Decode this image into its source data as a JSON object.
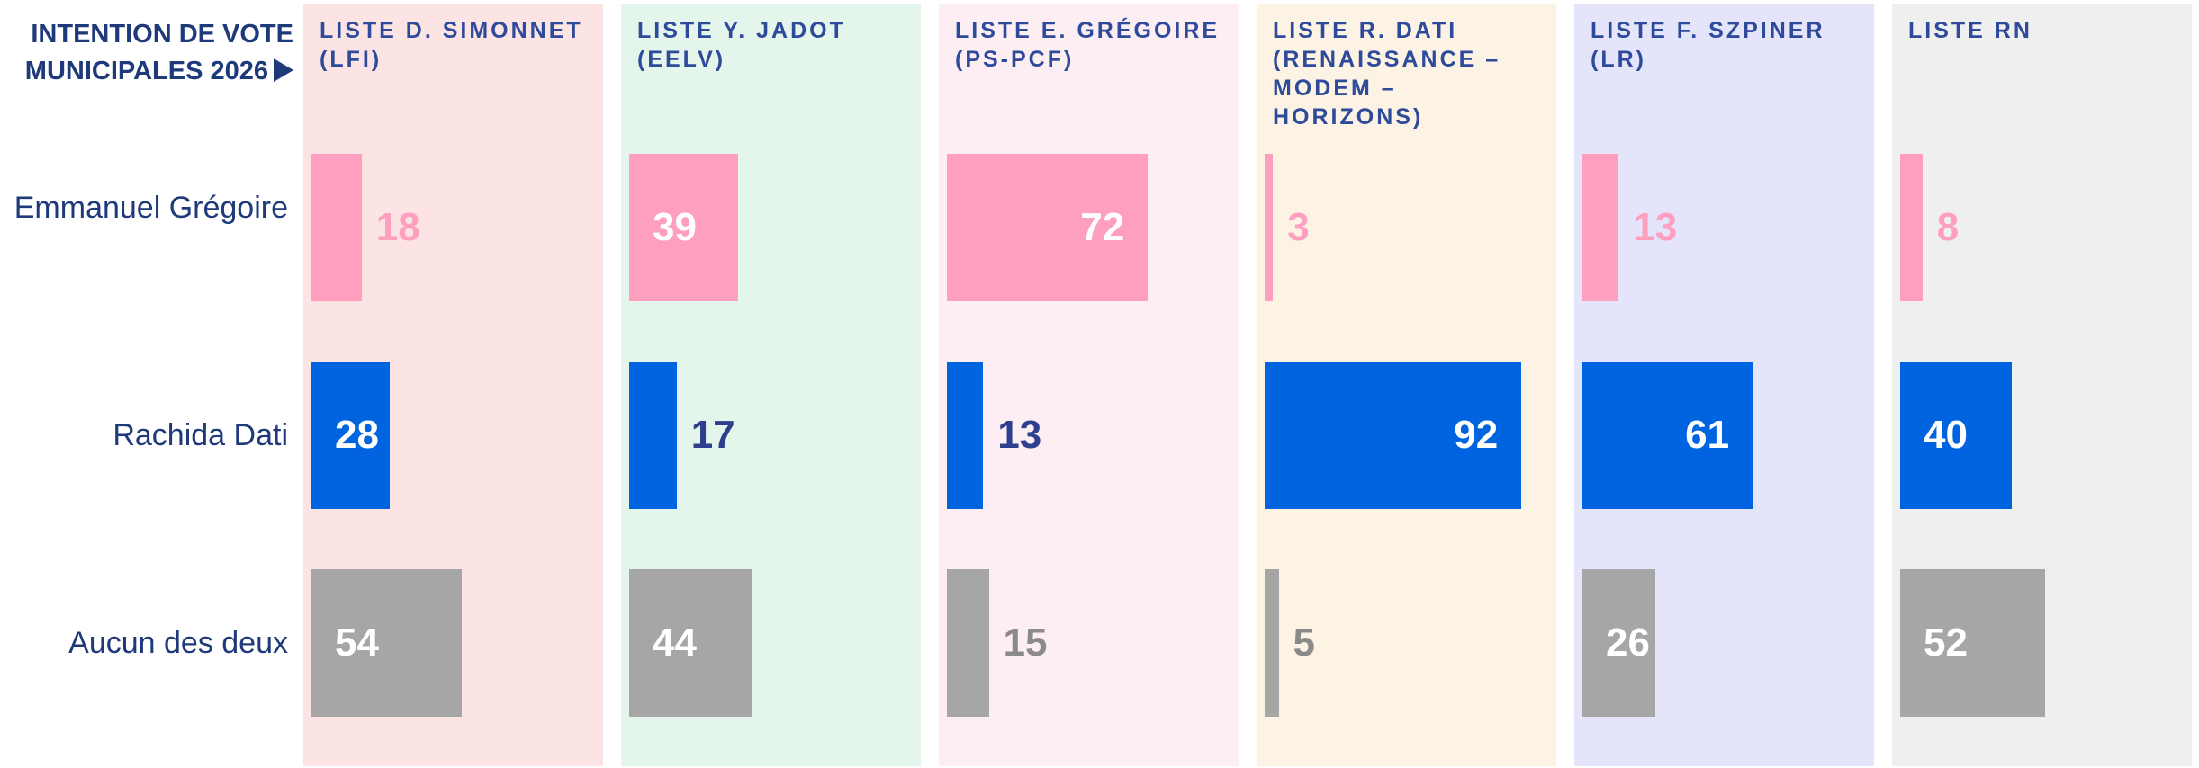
{
  "chart_data": {
    "type": "bar",
    "orientation": "horizontal",
    "title": "INTENTION DE VOTE MUNICIPALES 2026",
    "categories": [
      "Emmanuel Grégoire",
      "Rachida Dati",
      "Aucun des deux"
    ],
    "colors": [
      "#ff9fc0",
      "#0064e0",
      "#a6a6a6"
    ],
    "series": [
      {
        "name": "LISTE D. SIMONNET (LFI)",
        "color": "#fde4e4",
        "values": [
          18,
          28,
          54
        ]
      },
      {
        "name": "LISTE Y. JADOT (EELV)",
        "color": "#e4f5ec",
        "values": [
          39,
          17,
          44
        ]
      },
      {
        "name": "LISTE E. GRÉGOIRE (PS-PCF)",
        "color": "#fdeef4",
        "values": [
          72,
          13,
          15
        ]
      },
      {
        "name": "LISTE R. DATI (RENAISSANCE – MODEM – HORIZONS)",
        "color": "#fdf3e4",
        "values": [
          3,
          92,
          5
        ]
      },
      {
        "name": "LISTE F. SZPINER (LR)",
        "color": "#e4e4fb",
        "values": [
          13,
          61,
          26
        ]
      },
      {
        "name": "LISTE RN",
        "color": "#efefef",
        "values": [
          8,
          40,
          52
        ]
      }
    ]
  }
}
